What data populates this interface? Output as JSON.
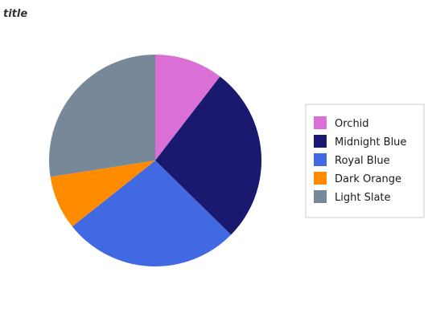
{
  "chart_data": {
    "type": "pie",
    "title": "title",
    "start_angle_deg": 0,
    "direction": "clockwise",
    "categories": [
      "Orchid",
      "Midnight Blue",
      "Royal Blue",
      "Dark Orange",
      "Light Slate"
    ],
    "values": [
      9.5,
      24.5,
      24.5,
      7.5,
      25.0
    ],
    "colors": {
      "Orchid": "#da70d6",
      "Midnight Blue": "#191970",
      "Royal Blue": "#4169e1",
      "Dark Orange": "#ff8c00",
      "Light Slate": "#778899"
    },
    "legend": {
      "placement": "right",
      "border": true,
      "entries": [
        "Orchid",
        "Midnight Blue",
        "Royal Blue",
        "Dark Orange",
        "Light Slate"
      ]
    }
  }
}
